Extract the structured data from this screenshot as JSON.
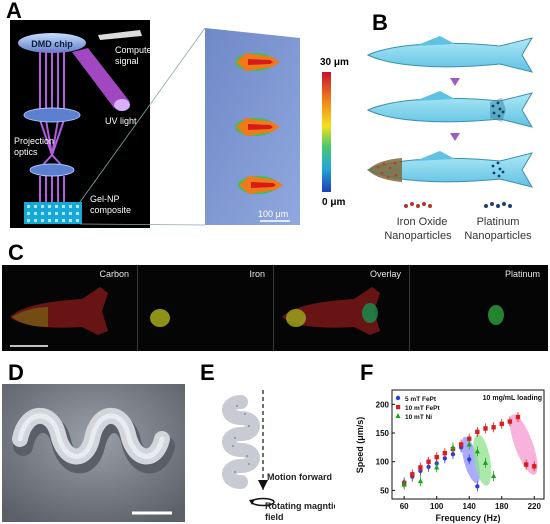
{
  "figure": {
    "panels": {
      "a": {
        "label": "A",
        "dmd_chip": "DMD chip",
        "computer_signal_line1": "Computer",
        "computer_signal_line2": "signal",
        "uv_light": "UV light",
        "projection_optics_line1": "Projection",
        "projection_optics_line2": "optics",
        "gel_np_line1": "Gel-NP",
        "gel_np_line2": "composite",
        "colorbar_max": "30 μm",
        "colorbar_min": "0 μm",
        "scale_bar": "100 μm"
      },
      "b": {
        "label": "B",
        "iron_oxide_line1": "Iron Oxide",
        "iron_oxide_line2": "Nanoparticles",
        "platinum_line1": "Platinum",
        "platinum_line2": "Nanoparticles"
      },
      "c": {
        "label": "C",
        "channels": [
          "Carbon",
          "Iron",
          "Overlay",
          "Platinum"
        ]
      },
      "d": {
        "label": "D"
      },
      "e": {
        "label": "E",
        "motion_text": "Motion forward",
        "rotating_line1": "Rotating magntic",
        "rotating_line2": "field"
      },
      "f": {
        "label": "F",
        "annotation": "10 mg/mL loading",
        "legend": [
          "5 mT FePt",
          "10 mT FePt",
          "10 mT Ni"
        ]
      }
    }
  },
  "chart_data": {
    "type": "scatter",
    "xlabel": "Frequency (Hz)",
    "ylabel": "Speed (μm/s)",
    "xlim": [
      45,
      232
    ],
    "ylim": [
      35,
      225
    ],
    "xticks": [
      60,
      100,
      140,
      180,
      220
    ],
    "xtick_labels": [
      "60",
      "100",
      "140",
      "180",
      "220"
    ],
    "yticks": [
      50,
      100,
      150,
      200
    ],
    "ytick_labels": [
      "50",
      "100",
      "150",
      "200"
    ],
    "series": [
      {
        "name": "5 mT FePt",
        "color": "#2b3fd6",
        "marker": "circle",
        "points": [
          [
            60,
            64
          ],
          [
            70,
            74
          ],
          [
            80,
            84
          ],
          [
            90,
            91
          ],
          [
            100,
            97
          ],
          [
            110,
            106
          ],
          [
            120,
            113
          ],
          [
            130,
            125
          ],
          [
            140,
            104
          ],
          [
            150,
            57
          ]
        ]
      },
      {
        "name": "10 mT FePt",
        "color": "#d81e1e",
        "marker": "square",
        "points": [
          [
            60,
            62
          ],
          [
            70,
            78
          ],
          [
            80,
            90
          ],
          [
            90,
            100
          ],
          [
            100,
            108
          ],
          [
            110,
            115
          ],
          [
            120,
            122
          ],
          [
            130,
            130
          ],
          [
            140,
            140
          ],
          [
            150,
            152
          ],
          [
            160,
            158
          ],
          [
            170,
            160
          ],
          [
            180,
            166
          ],
          [
            190,
            170
          ],
          [
            200,
            178
          ],
          [
            210,
            95
          ],
          [
            220,
            92
          ]
        ]
      },
      {
        "name": "10 mT Ni",
        "color": "#1aa21a",
        "marker": "triangle",
        "points": [
          [
            60,
            60
          ],
          [
            80,
            66
          ],
          [
            100,
            90
          ],
          [
            120,
            125
          ],
          [
            140,
            130
          ],
          [
            150,
            118
          ],
          [
            160,
            98
          ],
          [
            170,
            75
          ]
        ]
      }
    ],
    "highlight_regions": [
      {
        "color": "#8f8fff",
        "cx": 142,
        "cy": 103
      },
      {
        "color": "#8fe28f",
        "cx": 156,
        "cy": 103
      },
      {
        "color": "#f59ad0",
        "cx": 207,
        "cy": 130
      }
    ]
  }
}
